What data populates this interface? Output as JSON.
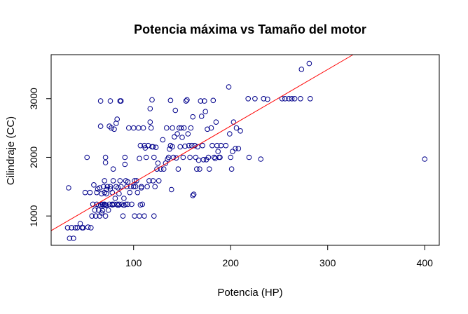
{
  "chart_data": {
    "type": "scatter",
    "title": "Potencia máxima vs Tamaño del motor",
    "xlabel": "Potencia (HP)",
    "ylabel": "Cilindraje (CC)",
    "xlim": [
      15,
      415
    ],
    "ylim": [
      500,
      3750
    ],
    "x_ticks": [
      100,
      200,
      300,
      400
    ],
    "y_ticks": [
      1000,
      2000,
      3000
    ],
    "grid": false,
    "point_color": "#00008b",
    "line_color": "#ff0000",
    "regression_line": {
      "x": [
        15,
        321
      ],
      "y": [
        750,
        3700
      ]
    },
    "points": [
      [
        32,
        800
      ],
      [
        33,
        1480
      ],
      [
        34,
        620
      ],
      [
        36,
        800
      ],
      [
        38,
        620
      ],
      [
        40,
        800
      ],
      [
        42,
        800
      ],
      [
        45,
        870
      ],
      [
        47,
        800
      ],
      [
        48,
        800
      ],
      [
        50,
        1400
      ],
      [
        52,
        2000
      ],
      [
        53,
        810
      ],
      [
        55,
        1400
      ],
      [
        56,
        800
      ],
      [
        57,
        1000
      ],
      [
        58,
        1200
      ],
      [
        59,
        1530
      ],
      [
        60,
        1100
      ],
      [
        61,
        1000
      ],
      [
        62,
        1200
      ],
      [
        62,
        1400
      ],
      [
        63,
        1460
      ],
      [
        64,
        1180
      ],
      [
        64,
        1100
      ],
      [
        65,
        1480
      ],
      [
        65,
        1000
      ],
      [
        66,
        1190
      ],
      [
        66,
        2960
      ],
      [
        66,
        2530
      ],
      [
        67,
        1380
      ],
      [
        67,
        1050
      ],
      [
        68,
        1200
      ],
      [
        68,
        1090
      ],
      [
        69,
        1500
      ],
      [
        69,
        1180
      ],
      [
        70,
        1600
      ],
      [
        70,
        1200
      ],
      [
        70,
        1400
      ],
      [
        71,
        1190
      ],
      [
        71,
        1910
      ],
      [
        71,
        1000
      ],
      [
        71,
        2000
      ],
      [
        72,
        1380
      ],
      [
        72,
        1450
      ],
      [
        72,
        1180
      ],
      [
        73,
        1500
      ],
      [
        74,
        1100
      ],
      [
        75,
        2530
      ],
      [
        75,
        1200
      ],
      [
        76,
        1460
      ],
      [
        76,
        2960
      ],
      [
        76,
        1500
      ],
      [
        77,
        2500
      ],
      [
        78,
        1200
      ],
      [
        78,
        1400
      ],
      [
        78,
        1190
      ],
      [
        79,
        1800
      ],
      [
        79,
        1600
      ],
      [
        80,
        1200
      ],
      [
        80,
        2480
      ],
      [
        81,
        1300
      ],
      [
        82,
        2580
      ],
      [
        82,
        1500
      ],
      [
        83,
        2650
      ],
      [
        83,
        1200
      ],
      [
        84,
        1480
      ],
      [
        84,
        1180
      ],
      [
        85,
        1200
      ],
      [
        85,
        1380
      ],
      [
        86,
        1600
      ],
      [
        86,
        2960
      ],
      [
        87,
        2960
      ],
      [
        87,
        1500
      ],
      [
        88,
        1200
      ],
      [
        89,
        1000
      ],
      [
        90,
        1300
      ],
      [
        90,
        1180
      ],
      [
        91,
        1880
      ],
      [
        91,
        2000
      ],
      [
        92,
        1600
      ],
      [
        92,
        1200
      ],
      [
        93,
        1500
      ],
      [
        94,
        1580
      ],
      [
        94,
        1200
      ],
      [
        95,
        2500
      ],
      [
        96,
        1400
      ],
      [
        97,
        1500
      ],
      [
        98,
        1200
      ],
      [
        100,
        1500
      ],
      [
        100,
        2500
      ],
      [
        101,
        1600
      ],
      [
        101,
        1000
      ],
      [
        102,
        1500
      ],
      [
        103,
        1600
      ],
      [
        104,
        1400
      ],
      [
        105,
        2500
      ],
      [
        106,
        1000
      ],
      [
        106,
        1980
      ],
      [
        107,
        1190
      ],
      [
        107,
        2200
      ],
      [
        108,
        1480
      ],
      [
        108,
        1500
      ],
      [
        109,
        1200
      ],
      [
        110,
        2500
      ],
      [
        111,
        1000
      ],
      [
        111,
        2200
      ],
      [
        112,
        2160
      ],
      [
        113,
        2000
      ],
      [
        114,
        1500
      ],
      [
        115,
        2200
      ],
      [
        116,
        1600
      ],
      [
        117,
        2600
      ],
      [
        117,
        2830
      ],
      [
        118,
        2500
      ],
      [
        119,
        2180
      ],
      [
        119,
        2980
      ],
      [
        120,
        2180
      ],
      [
        120,
        1600
      ],
      [
        121,
        2000
      ],
      [
        121,
        1000
      ],
      [
        122,
        1500
      ],
      [
        123,
        2170
      ],
      [
        124,
        1800
      ],
      [
        125,
        1900
      ],
      [
        126,
        1600
      ],
      [
        128,
        1800
      ],
      [
        130,
        2300
      ],
      [
        131,
        1800
      ],
      [
        133,
        1900
      ],
      [
        134,
        2500
      ],
      [
        135,
        1970
      ],
      [
        136,
        2000
      ],
      [
        137,
        2140
      ],
      [
        138,
        2200
      ],
      [
        138,
        2970
      ],
      [
        139,
        1450
      ],
      [
        140,
        2500
      ],
      [
        140,
        2180
      ],
      [
        141,
        2000
      ],
      [
        142,
        2350
      ],
      [
        143,
        2800
      ],
      [
        144,
        1990
      ],
      [
        145,
        2400
      ],
      [
        146,
        1800
      ],
      [
        147,
        2500
      ],
      [
        148,
        2180
      ],
      [
        149,
        2500
      ],
      [
        150,
        2340
      ],
      [
        151,
        2000
      ],
      [
        152,
        2500
      ],
      [
        153,
        2190
      ],
      [
        154,
        2960
      ],
      [
        155,
        2980
      ],
      [
        156,
        2400
      ],
      [
        157,
        2200
      ],
      [
        158,
        2000
      ],
      [
        159,
        2500
      ],
      [
        160,
        2200
      ],
      [
        161,
        2690
      ],
      [
        161,
        1350
      ],
      [
        162,
        1370
      ],
      [
        163,
        2200
      ],
      [
        164,
        2000
      ],
      [
        165,
        1800
      ],
      [
        166,
        2180
      ],
      [
        167,
        1950
      ],
      [
        168,
        1800
      ],
      [
        169,
        2960
      ],
      [
        170,
        2700
      ],
      [
        171,
        2200
      ],
      [
        172,
        1960
      ],
      [
        173,
        2960
      ],
      [
        174,
        2780
      ],
      [
        175,
        1960
      ],
      [
        176,
        2480
      ],
      [
        177,
        2000
      ],
      [
        178,
        1800
      ],
      [
        180,
        2500
      ],
      [
        181,
        2200
      ],
      [
        182,
        2970
      ],
      [
        183,
        2000
      ],
      [
        184,
        1980
      ],
      [
        185,
        2600
      ],
      [
        186,
        2200
      ],
      [
        187,
        2100
      ],
      [
        188,
        2000
      ],
      [
        189,
        2000
      ],
      [
        190,
        2200
      ],
      [
        195,
        2200
      ],
      [
        198,
        3200
      ],
      [
        199,
        2400
      ],
      [
        200,
        2000
      ],
      [
        201,
        1800
      ],
      [
        202,
        2100
      ],
      [
        203,
        2600
      ],
      [
        205,
        2150
      ],
      [
        206,
        2500
      ],
      [
        208,
        2150
      ],
      [
        210,
        2450
      ],
      [
        218,
        3000
      ],
      [
        219,
        2000
      ],
      [
        225,
        3000
      ],
      [
        231,
        1970
      ],
      [
        234,
        3000
      ],
      [
        238,
        2990
      ],
      [
        253,
        3000
      ],
      [
        256,
        3000
      ],
      [
        260,
        3000
      ],
      [
        263,
        3000
      ],
      [
        266,
        3000
      ],
      [
        272,
        3000
      ],
      [
        273,
        3500
      ],
      [
        282,
        3000
      ],
      [
        281,
        3600
      ],
      [
        400,
        1970
      ]
    ]
  }
}
